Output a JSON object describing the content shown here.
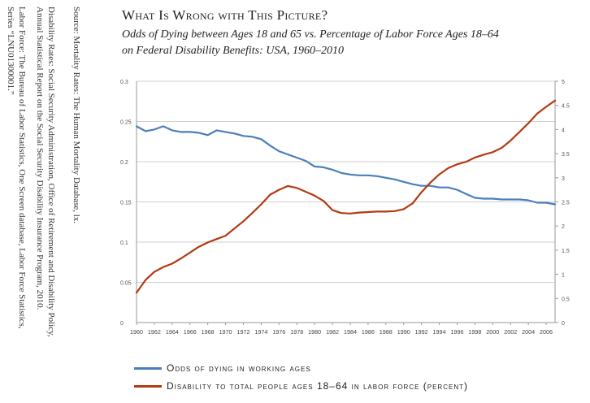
{
  "sources": [
    "Source:  Mortality Rates: The Human Mortality Database, lx.",
    "Disability Rates: Social Security Administration, Office of Retirement and Disability Policy,",
    "Annual Statistical Report on the Social Security Disability Insurance Program, 2010.",
    "Labor Force: The Bureau of Labor Statistics, One Screen database, Labor Force Statistics,",
    "Series “LNU01300001.”"
  ],
  "title": "What Is Wrong with This Picture?",
  "subtitle_lines": [
    "Odds of Dying between Ages 18 and 65 vs. Percentage of Labor Force Ages 18–64",
    "on Federal Disability Benefits: USA, 1960–2010"
  ],
  "colors": {
    "series1": "#4a7ebb",
    "series2": "#b33a12",
    "grid": "#cfcfcf",
    "axis": "#9a9a9a"
  },
  "chart_data": {
    "type": "line",
    "title": "What Is Wrong with This Picture?",
    "x_tick_labels": [
      "1960",
      "1962",
      "1964",
      "1966",
      "1968",
      "1970",
      "1972",
      "1974",
      "1976",
      "1978",
      "1980",
      "1982",
      "1984",
      "1986",
      "1988",
      "1990",
      "1992",
      "1994",
      "1996",
      "1998",
      "2000",
      "2002",
      "2004",
      "2006"
    ],
    "y_left": {
      "lim": [
        0,
        0.3
      ],
      "tick_labels": [
        "0",
        "0.05",
        "0.1",
        "0.15",
        "0.2",
        "0.25",
        "0.3"
      ]
    },
    "y_right": {
      "lim": [
        0,
        5
      ],
      "tick_labels": [
        "0",
        "0.5",
        "1",
        "1.5",
        "2",
        "2.5",
        "3",
        "3.5",
        "4",
        "4.5",
        "5"
      ]
    },
    "grid": true,
    "legend_position": "bottom",
    "series": [
      {
        "name": "Odds of dying in working ages",
        "axis": "left",
        "x": [
          1960,
          1961,
          1962,
          1963,
          1964,
          1965,
          1966,
          1967,
          1968,
          1969,
          1970,
          1971,
          1972,
          1973,
          1974,
          1975,
          1976,
          1977,
          1978,
          1979,
          1980,
          1981,
          1982,
          1983,
          1984,
          1985,
          1986,
          1987,
          1988,
          1989,
          1990,
          1991,
          1992,
          1993,
          1994,
          1995,
          1996,
          1997,
          1998,
          1999,
          2000,
          2001,
          2002,
          2003,
          2004,
          2005,
          2006,
          2007
        ],
        "values": [
          0.244,
          0.238,
          0.24,
          0.244,
          0.239,
          0.237,
          0.237,
          0.236,
          0.233,
          0.239,
          0.237,
          0.235,
          0.232,
          0.231,
          0.228,
          0.22,
          0.213,
          0.209,
          0.205,
          0.201,
          0.194,
          0.193,
          0.19,
          0.186,
          0.184,
          0.183,
          0.183,
          0.182,
          0.18,
          0.178,
          0.175,
          0.172,
          0.17,
          0.17,
          0.168,
          0.168,
          0.165,
          0.16,
          0.155,
          0.154,
          0.154,
          0.153,
          0.153,
          0.153,
          0.152,
          0.149,
          0.149,
          0.147
        ]
      },
      {
        "name": "Disability to total people ages 18–64 in labor force (percent)",
        "axis": "right",
        "x": [
          1960,
          1961,
          1962,
          1963,
          1964,
          1965,
          1966,
          1967,
          1968,
          1969,
          1970,
          1971,
          1972,
          1973,
          1974,
          1975,
          1976,
          1977,
          1978,
          1979,
          1980,
          1981,
          1982,
          1983,
          1984,
          1985,
          1986,
          1987,
          1988,
          1989,
          1990,
          1991,
          1992,
          1993,
          1994,
          1995,
          1996,
          1997,
          1998,
          1999,
          2000,
          2001,
          2002,
          2003,
          2004,
          2005,
          2006,
          2007
        ],
        "values": [
          0.62,
          0.88,
          1.05,
          1.15,
          1.22,
          1.33,
          1.45,
          1.57,
          1.66,
          1.73,
          1.8,
          1.95,
          2.1,
          2.27,
          2.45,
          2.65,
          2.75,
          2.83,
          2.79,
          2.71,
          2.63,
          2.52,
          2.33,
          2.27,
          2.26,
          2.28,
          2.29,
          2.3,
          2.3,
          2.31,
          2.35,
          2.47,
          2.7,
          2.9,
          3.07,
          3.2,
          3.28,
          3.33,
          3.42,
          3.48,
          3.53,
          3.62,
          3.77,
          3.95,
          4.13,
          4.33,
          4.47,
          4.6
        ]
      }
    ]
  }
}
